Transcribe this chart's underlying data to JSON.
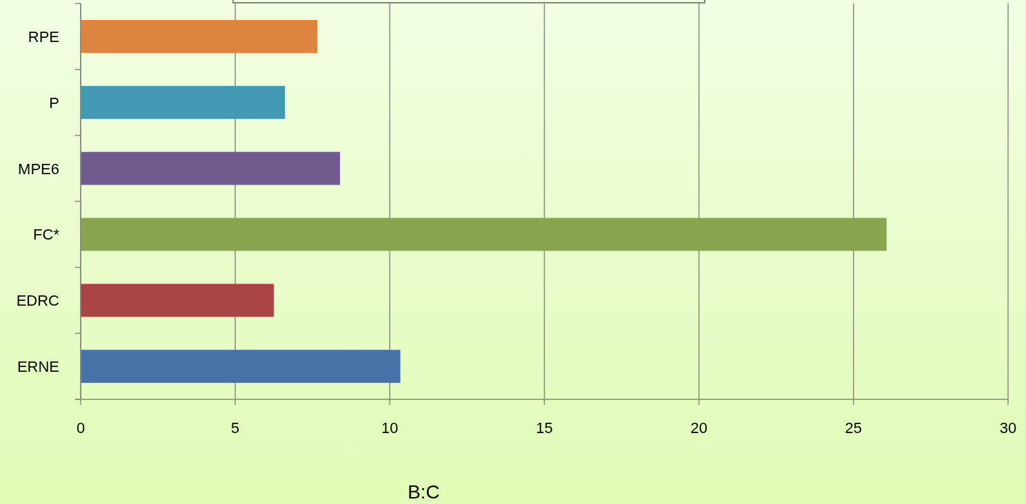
{
  "chart_data": {
    "type": "bar",
    "orientation": "horizontal",
    "xlabel": "B:C",
    "categories": [
      "RPE",
      "P",
      "MPE6",
      "FC*",
      "EDRC",
      "ERNE"
    ],
    "values": [
      7.66,
      6.61,
      8.39,
      26.07,
      6.25,
      10.34
    ],
    "colors": [
      "#dd843e",
      "#4299b2",
      "#715a8e",
      "#89a54e",
      "#a94645",
      "#4573a7"
    ],
    "xlim": [
      0,
      30
    ],
    "xticks": [
      0,
      5,
      10,
      15,
      20,
      25,
      30
    ],
    "grid": "x"
  }
}
